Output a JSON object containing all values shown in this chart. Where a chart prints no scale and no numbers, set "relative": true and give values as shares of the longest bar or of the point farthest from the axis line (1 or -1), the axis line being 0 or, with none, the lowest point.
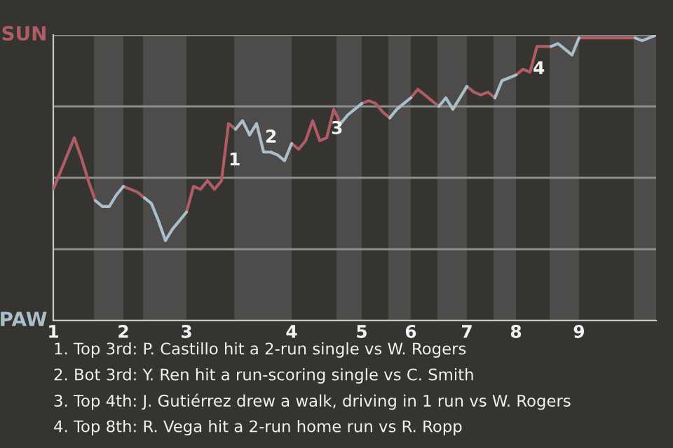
{
  "chart_data": {
    "type": "line",
    "relative": true,
    "categories": [
      "1",
      null,
      null,
      null,
      null,
      null,
      null,
      null,
      null,
      null,
      "2",
      null,
      null,
      null,
      null,
      null,
      null,
      null,
      null,
      "3",
      null,
      null,
      null,
      null,
      null,
      null,
      null,
      null,
      null,
      null,
      null,
      null,
      null,
      null,
      "4",
      null,
      null,
      null,
      null,
      null,
      null,
      null,
      null,
      null,
      "5",
      null,
      null,
      null,
      null,
      null,
      null,
      "6",
      null,
      null,
      null,
      null,
      null,
      null,
      null,
      "7",
      null,
      null,
      null,
      null,
      null,
      null,
      "8",
      null,
      null,
      null,
      null,
      null,
      null,
      null,
      null,
      "9",
      null,
      null,
      null,
      null,
      null,
      null,
      null,
      null,
      null,
      null,
      null
    ],
    "series": [
      {
        "color": "#b05c64",
        "values": [
          0.46,
          0.52,
          0.58,
          0.64,
          0.57,
          0.49,
          0.42,
          null,
          null,
          null,
          0.47,
          0.46,
          0.45,
          0.43,
          null,
          null,
          null,
          null,
          null,
          0.38,
          0.47,
          0.46,
          0.49,
          0.46,
          0.49,
          0.69,
          0.67,
          null,
          null,
          null,
          null,
          null,
          null,
          null,
          0.62,
          0.6,
          0.63,
          0.7,
          0.63,
          0.64,
          0.74,
          0.69,
          null,
          null,
          0.76,
          0.77,
          0.76,
          0.73,
          0.71,
          null,
          null,
          0.78,
          0.81,
          0.79,
          0.77,
          0.75,
          null,
          null,
          null,
          0.82,
          0.8,
          0.79,
          0.8,
          0.78,
          null,
          null,
          0.86,
          0.88,
          0.87,
          0.96,
          0.96,
          0.96,
          null,
          null,
          null,
          0.99,
          0.99,
          0.99,
          0.99,
          0.99,
          0.99,
          0.99,
          0.99,
          0.99,
          null,
          null,
          null
        ]
      },
      {
        "color": "#a9c0cb",
        "values": [
          null,
          null,
          null,
          null,
          null,
          null,
          0.42,
          0.4,
          0.4,
          0.44,
          0.47,
          null,
          null,
          0.43,
          0.41,
          0.35,
          0.28,
          0.32,
          0.35,
          0.38,
          null,
          null,
          null,
          null,
          null,
          null,
          0.67,
          0.7,
          0.65,
          0.69,
          0.59,
          0.59,
          0.58,
          0.56,
          0.62,
          null,
          null,
          null,
          null,
          null,
          null,
          0.69,
          0.72,
          0.74,
          0.76,
          null,
          null,
          null,
          0.71,
          0.74,
          0.76,
          0.78,
          null,
          null,
          null,
          0.75,
          0.78,
          0.74,
          0.78,
          0.82,
          null,
          null,
          null,
          0.78,
          0.84,
          0.85,
          0.86,
          null,
          null,
          null,
          null,
          0.96,
          0.97,
          0.95,
          0.93,
          0.99,
          null,
          null,
          null,
          null,
          null,
          null,
          null,
          0.99,
          0.98,
          0.99,
          1.0
        ]
      }
    ],
    "grid": "y",
    "annotations": [
      "SUN",
      "PAW",
      "1",
      "2",
      "3",
      "4",
      "1. Top 3rd: P. Castillo hit a 2-run single vs W. Rogers",
      "2. Bot 3rd: Y. Ren hit a run-scoring single vs C. Smith",
      "3. Top 4th: J. Gutiérrez drew a walk, driving in 1 run vs W. Rogers",
      "4. Top 8th: R. Vega hit a 2-run home run vs R. Ropp"
    ]
  }
}
